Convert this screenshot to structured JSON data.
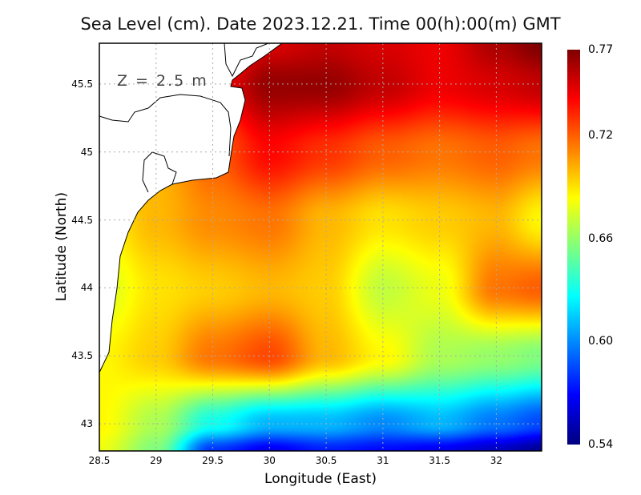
{
  "chart_data": {
    "type": "heatmap",
    "title": "Sea Level (cm). Date 2023.12.21. Time 00(h):00(m) GMT",
    "annotation": "Z = 2.5 m",
    "xlabel": "Longitude (East)",
    "ylabel": "Latitude (North)",
    "xlim": [
      28.5,
      32.4
    ],
    "ylim": [
      42.8,
      45.8
    ],
    "xticks": [
      "28.5",
      "29",
      "29.5",
      "30",
      "30.5",
      "31",
      "31.5",
      "32"
    ],
    "xtick_values": [
      28.5,
      29,
      29.5,
      30,
      30.5,
      31,
      31.5,
      32
    ],
    "yticks": [
      "45.5",
      "45",
      "44.5",
      "44",
      "43.5",
      "43"
    ],
    "ytick_values": [
      45.5,
      45,
      44.5,
      44,
      43.5,
      43
    ],
    "grid": true,
    "colorbar": {
      "min": 0.54,
      "max": 0.77,
      "ticks": [
        "0.77",
        "0.72",
        "0.66",
        "0.60",
        "0.54"
      ],
      "tick_values": [
        0.77,
        0.72,
        0.66,
        0.6,
        0.54
      ],
      "colormap": "jet"
    },
    "lon": [
      28.5,
      29,
      29.5,
      30,
      30.5,
      31,
      31.5,
      32,
      32.4
    ],
    "lat": [
      45.8,
      45.5,
      45.0,
      44.5,
      44.0,
      43.5,
      43.0,
      42.8
    ],
    "values": [
      [
        0.72,
        0.72,
        0.73,
        0.75,
        0.755,
        0.75,
        0.745,
        0.76,
        0.77
      ],
      [
        0.72,
        0.72,
        0.74,
        0.765,
        0.765,
        0.755,
        0.745,
        0.75,
        0.755
      ],
      [
        0.7,
        0.7,
        0.72,
        0.74,
        0.73,
        0.72,
        0.715,
        0.72,
        0.715
      ],
      [
        0.685,
        0.7,
        0.71,
        0.715,
        0.7,
        0.69,
        0.695,
        0.7,
        0.685
      ],
      [
        0.675,
        0.69,
        0.695,
        0.7,
        0.695,
        0.67,
        0.68,
        0.715,
        0.72
      ],
      [
        0.685,
        0.695,
        0.715,
        0.725,
        0.7,
        0.685,
        0.665,
        0.66,
        0.655
      ],
      [
        0.685,
        0.665,
        0.63,
        0.61,
        0.61,
        0.6,
        0.61,
        0.595,
        0.585
      ],
      [
        0.68,
        0.655,
        0.58,
        0.565,
        0.575,
        0.57,
        0.565,
        0.555,
        0.545
      ]
    ]
  }
}
